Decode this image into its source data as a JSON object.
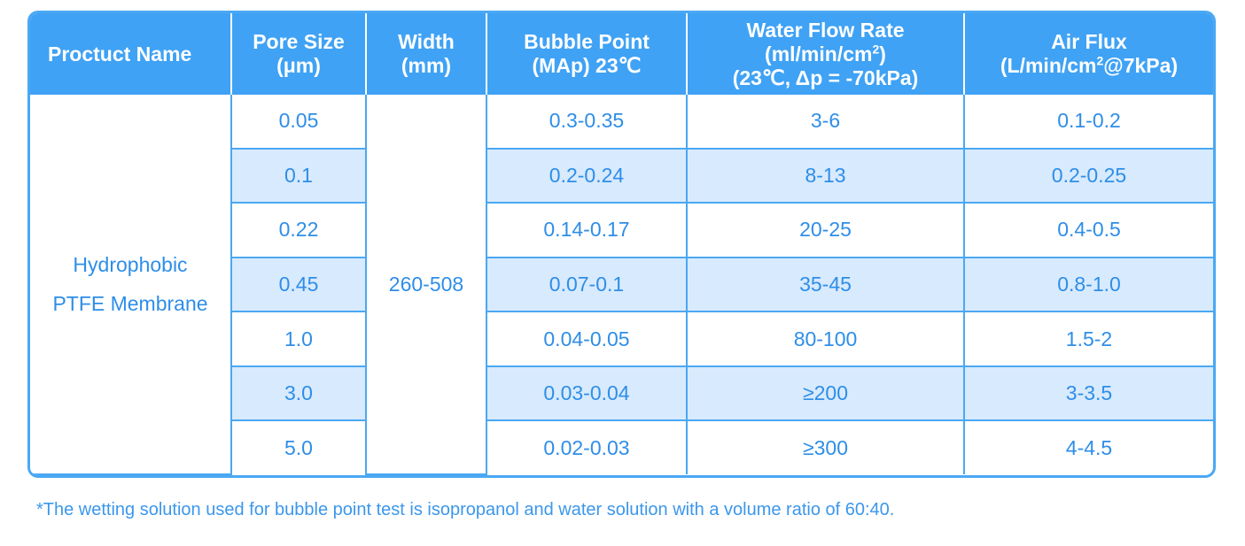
{
  "table": {
    "headers": {
      "product_name": "Proctuct Name",
      "pore_size_line1": "Pore Size",
      "pore_size_line2": "(μm)",
      "width_line1": "Width",
      "width_line2": "(mm)",
      "bubble_point_line1": "Bubble Point",
      "bubble_point_line2": "(MAp) 23℃",
      "water_flow_line1": "Water Flow Rate",
      "water_flow_line2_pre": "(ml/min/cm",
      "water_flow_line2_sup": "2",
      "water_flow_line2_post": ")",
      "water_flow_line3": "(23℃, Δp = -70kPa)",
      "air_flux_line1": "Air Flux",
      "air_flux_line2_pre": "(L/min/cm",
      "air_flux_line2_sup": "2",
      "air_flux_line2_post": "@7kPa)"
    },
    "product_name_line1": "Hydrophobic",
    "product_name_line2": "PTFE Membrane",
    "width": "260-508",
    "rows": [
      {
        "pore_size": "0.05",
        "bubble_point": "0.3-0.35",
        "water_flow": "3-6",
        "air_flux": "0.1-0.2"
      },
      {
        "pore_size": "0.1",
        "bubble_point": "0.2-0.24",
        "water_flow": "8-13",
        "air_flux": "0.2-0.25"
      },
      {
        "pore_size": "0.22",
        "bubble_point": "0.14-0.17",
        "water_flow": "20-25",
        "air_flux": "0.4-0.5"
      },
      {
        "pore_size": "0.45",
        "bubble_point": "0.07-0.1",
        "water_flow": "35-45",
        "air_flux": "0.8-1.0"
      },
      {
        "pore_size": "1.0",
        "bubble_point": "0.04-0.05",
        "water_flow": "80-100",
        "air_flux": "1.5-2"
      },
      {
        "pore_size": "3.0",
        "bubble_point": "0.03-0.04",
        "water_flow": "≥200",
        "air_flux": "3-3.5"
      },
      {
        "pore_size": "5.0",
        "bubble_point": "0.02-0.03",
        "water_flow": "≥300",
        "air_flux": "4-4.5"
      }
    ]
  },
  "footnote": "*The wetting solution used for bubble point test is isopropanol and water solution with a volume ratio of 60:40.",
  "colors": {
    "header_bg": "#3fa2f5",
    "border": "#4aa8f3",
    "row_shade": "#d8eafd",
    "text": "#2e8ee8"
  }
}
